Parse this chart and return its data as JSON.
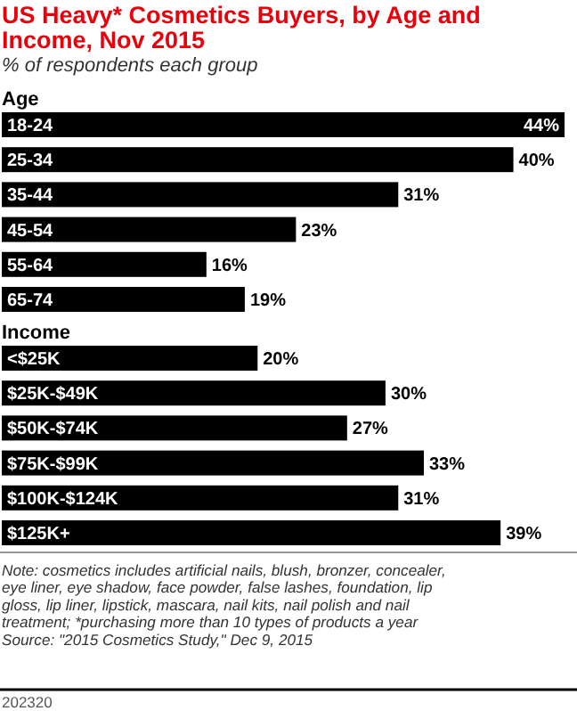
{
  "chart_data": [
    {
      "type": "other",
      "title": "US Heavy* Cosmetics Buyers, by Age and Income, Nov 2015",
      "subtitle": "% of respondents each group"
    },
    {
      "type": "bar",
      "orientation": "horizontal",
      "title": "Age",
      "categories": [
        "18-24",
        "25-34",
        "35-44",
        "45-54",
        "55-64",
        "65-74"
      ],
      "values": [
        44,
        40,
        31,
        23,
        16,
        19
      ],
      "value_labels": [
        "44%",
        "40%",
        "31%",
        "23%",
        "16%",
        "19%"
      ],
      "color": "#000000"
    },
    {
      "type": "bar",
      "orientation": "horizontal",
      "title": "Income",
      "categories": [
        "<$25K",
        "$25K-$49K",
        "$50K-$74K",
        "$75K-$99K",
        "$100K-$124K",
        "$125K+"
      ],
      "values": [
        20,
        30,
        27,
        33,
        31,
        39
      ],
      "value_labels": [
        "20%",
        "30%",
        "27%",
        "33%",
        "31%",
        "39%"
      ],
      "color": "#000000",
      "annotations": [
        "Note: cosmetics includes artificial nails, blush, bronzer, concealer, eye liner, eye shadow, face powder, false lashes, foundation, lip gloss, lip liner, lipstick, mascara, nail kits, nail polish and nail treatment; *purchasing more than 10 types of products a year",
        "Source: \"2015 Cosmetics Study,\" Dec 9, 2015",
        "202320"
      ]
    }
  ]
}
